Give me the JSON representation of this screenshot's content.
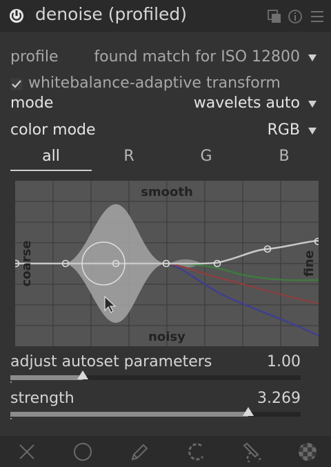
{
  "header": {
    "title": "denoise (profiled)",
    "icons": [
      "power-icon",
      "presets-icon",
      "reset-icon",
      "menu-icon"
    ]
  },
  "profile": {
    "label": "profile",
    "value": "found match for ISO 12800"
  },
  "whitebalance": {
    "label": "whitebalance-adaptive transform",
    "checked": true
  },
  "mode": {
    "label": "mode",
    "value": "wavelets auto"
  },
  "color_mode": {
    "label": "color mode",
    "value": "RGB"
  },
  "tabs": [
    {
      "label": "all",
      "active": true
    },
    {
      "label": "R",
      "active": false
    },
    {
      "label": "G",
      "active": false
    },
    {
      "label": "B",
      "active": false
    }
  ],
  "graph": {
    "top_label": "smooth",
    "bottom_label": "noisy",
    "left_label": "coarse",
    "right_label": "fine"
  },
  "sliders": [
    {
      "label": "adjust autoset parameters",
      "value": "1.00",
      "fraction": 0.25
    },
    {
      "label": "strength",
      "value": "3.269",
      "fraction": 0.82
    }
  ],
  "footer": {
    "icons": [
      "close-icon",
      "circle-icon",
      "pencil-icon",
      "brush-icon",
      "drawn-brush-icon",
      "checker-icon"
    ]
  },
  "colors": {
    "background": "#333333",
    "header": "#2a2a2a",
    "graph_bg": "#545454"
  }
}
